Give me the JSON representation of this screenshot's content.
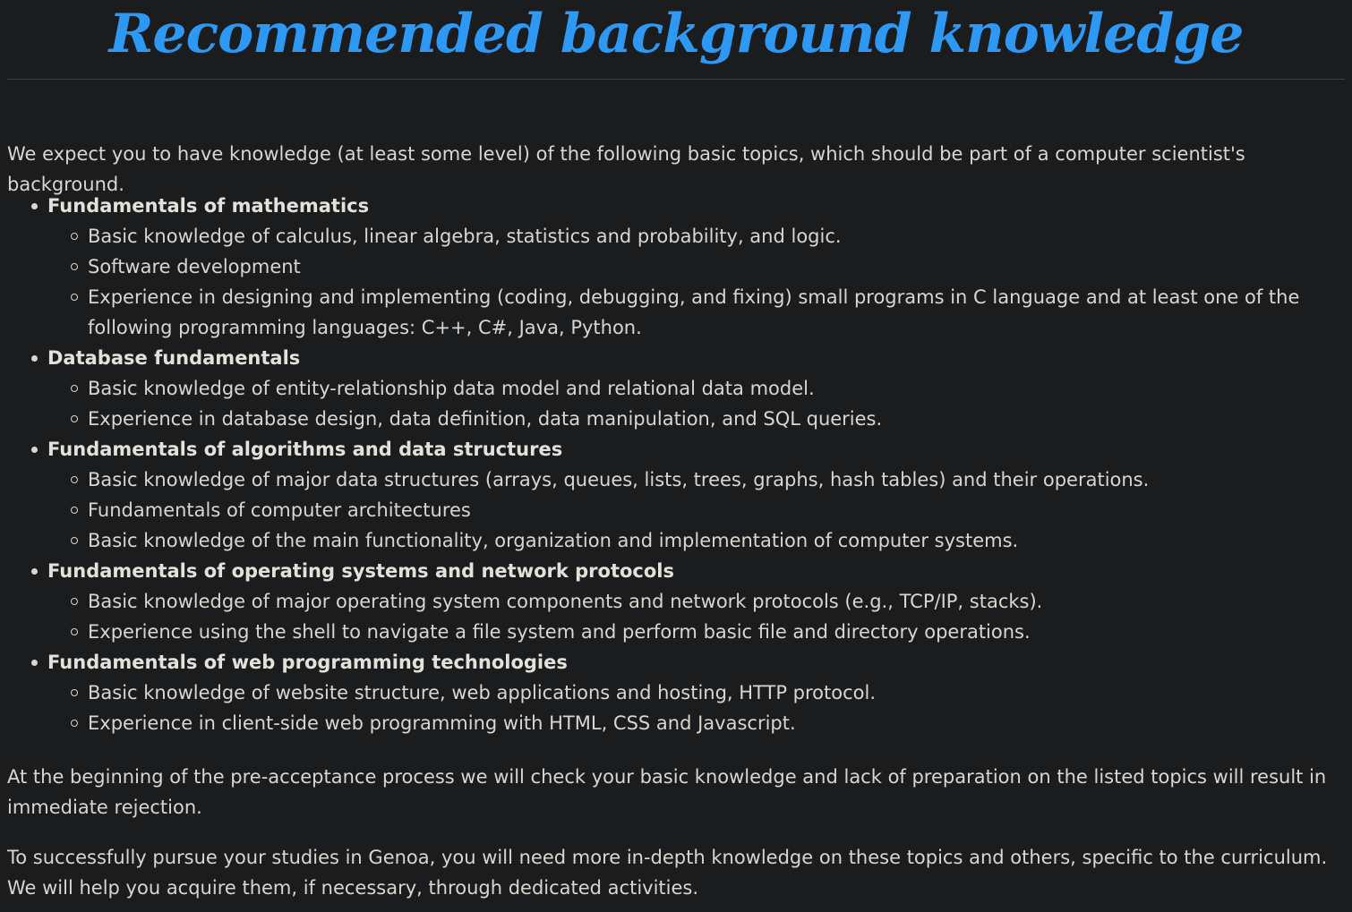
{
  "page": {
    "title": "Recommended background knowledge",
    "intro": "We expect you to have knowledge (at least some level) of the following basic topics, which should be part of a computer scientist's background.",
    "topics": [
      {
        "title": "Fundamentals of mathematics",
        "items": [
          "Basic knowledge of calculus, linear algebra, statistics and probability, and logic.",
          "Software development",
          "Experience in designing and implementing (coding, debugging, and fixing) small programs in C language and at least one of the following programming languages: C++, C#, Java, Python."
        ]
      },
      {
        "title": "Database fundamentals",
        "items": [
          "Basic knowledge of entity-relationship data model and relational data model.",
          "Experience in database design, data definition, data manipulation, and SQL queries."
        ]
      },
      {
        "title": "Fundamentals of algorithms and data structures",
        "items": [
          "Basic knowledge of major data structures (arrays, queues, lists, trees, graphs, hash tables) and their operations.",
          "Fundamentals of computer architectures",
          "Basic knowledge of the main functionality, organization and implementation of computer systems."
        ]
      },
      {
        "title": "Fundamentals of operating systems and network protocols",
        "items": [
          "Basic knowledge of major operating system components and network protocols (e.g., TCP/IP, stacks).",
          "Experience using the shell to navigate a file system and perform basic file and directory operations."
        ]
      },
      {
        "title": "Fundamentals of web programming technologies",
        "items": [
          "Basic knowledge of website structure, web applications and hosting, HTTP protocol.",
          "Experience in client-side web programming with HTML, CSS and Javascript."
        ]
      }
    ],
    "outro1": "At the beginning of the pre-acceptance process we will check your basic knowledge and lack of preparation on the listed topics will result in immediate rejection.",
    "outro2": "To successfully pursue your studies in Genoa, you will need more in-depth knowledge on these topics and others, specific to the curriculum. We will help you acquire them, if necessary, through dedicated activities."
  },
  "colors": {
    "background": "#1b1c1e",
    "heading": "#2d99f5",
    "text": "#d9d6d0"
  }
}
